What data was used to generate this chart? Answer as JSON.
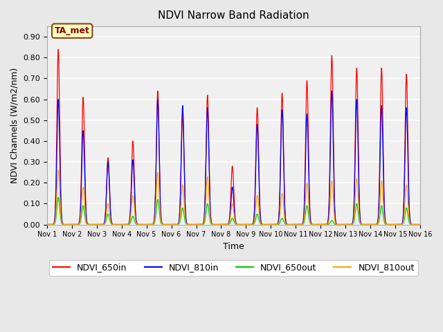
{
  "title": "NDVI Narrow Band Radiation",
  "xlabel": "Time",
  "ylabel": "NDVI Channels (W/m2/nm)",
  "ylim": [
    0.0,
    0.95
  ],
  "yticks": [
    0.0,
    0.1,
    0.2,
    0.3,
    0.4,
    0.5,
    0.6,
    0.7,
    0.8,
    0.9
  ],
  "annotation": "TA_met",
  "colors": {
    "NDVI_650in": "#FF0000",
    "NDVI_810in": "#0000FF",
    "NDVI_650out": "#00CC00",
    "NDVI_810out": "#FFA500"
  },
  "background_color": "#E8E8E8",
  "plot_bg_color": "#F0F0F0",
  "grid_color": "#FFFFFF",
  "xtick_labels": [
    "Nov 1",
    "Nov 2",
    "Nov 3",
    "Nov 4",
    "Nov 5",
    "Nov 6",
    "Nov 7",
    "Nov 8",
    "Nov 9",
    "Nov 10",
    "Nov 11",
    "Nov 12",
    "Nov 13",
    "Nov 14",
    "Nov 15",
    "Nov 16"
  ],
  "num_days": 15,
  "peaks_650in": [
    0.84,
    0.61,
    0.32,
    0.4,
    0.64,
    0.53,
    0.62,
    0.28,
    0.56,
    0.63,
    0.69,
    0.81,
    0.75,
    0.75,
    0.72
  ],
  "peaks_810in": [
    0.6,
    0.45,
    0.3,
    0.31,
    0.6,
    0.57,
    0.56,
    0.18,
    0.48,
    0.55,
    0.53,
    0.64,
    0.6,
    0.57,
    0.56
  ],
  "peaks_650out": [
    0.13,
    0.09,
    0.05,
    0.04,
    0.12,
    0.08,
    0.1,
    0.03,
    0.05,
    0.03,
    0.09,
    0.02,
    0.1,
    0.09,
    0.08
  ],
  "peaks_810out": [
    0.26,
    0.18,
    0.1,
    0.14,
    0.25,
    0.19,
    0.23,
    0.1,
    0.14,
    0.15,
    0.2,
    0.21,
    0.22,
    0.21,
    0.19
  ]
}
